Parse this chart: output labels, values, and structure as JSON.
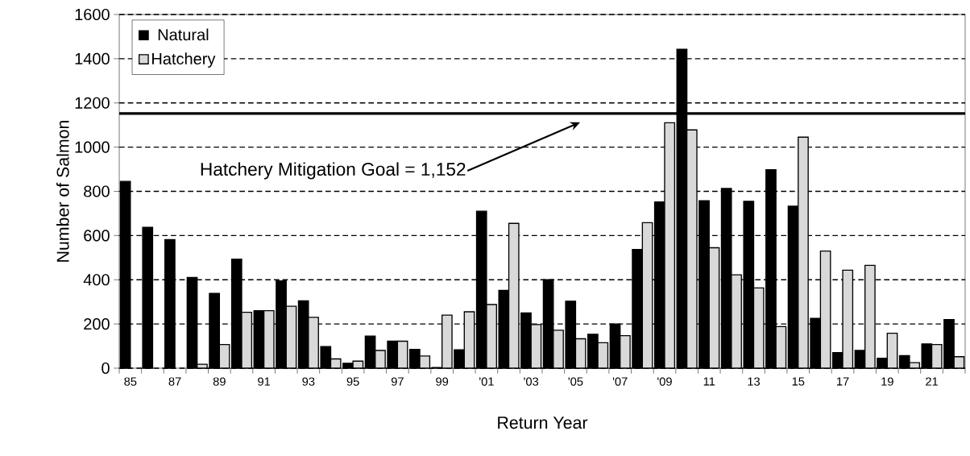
{
  "chart_data": {
    "type": "bar",
    "xlabel": "Return Year",
    "ylabel": "Number of Salmon",
    "categories": [
      "85",
      null,
      "87",
      null,
      "89",
      null,
      "91",
      null,
      "93",
      null,
      "95",
      null,
      "97",
      null,
      "99",
      null,
      "'01",
      null,
      "'03",
      null,
      "'05",
      null,
      "'07",
      null,
      "'09",
      null,
      "11",
      null,
      "13",
      null,
      "15",
      null,
      "17",
      null,
      "19",
      null,
      "21",
      null
    ],
    "series": [
      {
        "name": "Natural",
        "color": "#000000",
        "values": [
          845,
          637,
          582,
          410,
          338,
          493,
          260,
          395,
          305,
          98,
          22,
          145,
          122,
          85,
          3,
          83,
          710,
          352,
          250,
          400,
          303,
          153,
          200,
          537,
          752,
          1443,
          757,
          813,
          755,
          898,
          733,
          225,
          70,
          80,
          45,
          57,
          110,
          220
        ]
      },
      {
        "name": "Hatchery",
        "color": "#d9d9d9",
        "values": [
          null,
          null,
          null,
          18,
          107,
          253,
          260,
          280,
          230,
          42,
          32,
          80,
          122,
          55,
          240,
          255,
          288,
          655,
          197,
          172,
          133,
          115,
          147,
          658,
          1110,
          1078,
          545,
          422,
          363,
          188,
          1045,
          530,
          443,
          465,
          158,
          25,
          107,
          52
        ]
      }
    ],
    "ylim": [
      0,
      1600
    ],
    "yticks": [
      0,
      200,
      400,
      600,
      800,
      1000,
      1200,
      1400,
      1600
    ],
    "ref_lines": [
      {
        "axis": "y",
        "value": 1152,
        "label": "Hatchery Mitigation Goal = 1,152",
        "color": "#000000",
        "line_style": "solid"
      }
    ],
    "grid": "y",
    "legend": "top left"
  }
}
